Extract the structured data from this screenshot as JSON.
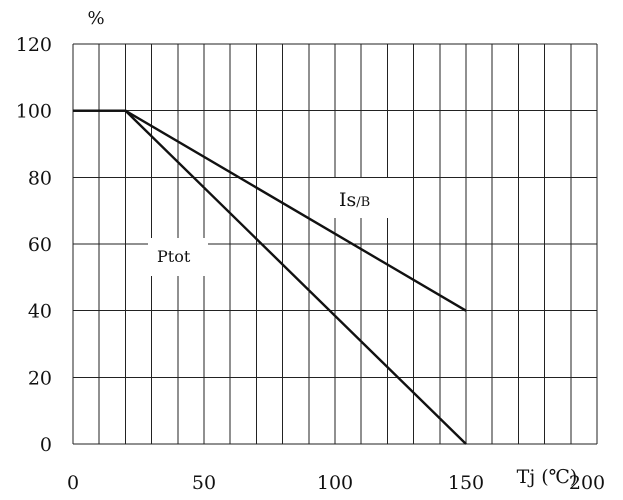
{
  "chart_data": {
    "type": "line",
    "xlabel": "Tj (℃)",
    "ylabel": "%",
    "xlim": [
      0,
      200
    ],
    "ylim": [
      0,
      120
    ],
    "x_ticks": [
      0,
      50,
      100,
      150,
      200
    ],
    "y_ticks": [
      0,
      20,
      40,
      60,
      80,
      100,
      120
    ],
    "grid": true,
    "series": [
      {
        "name": "Is/B",
        "x": [
          0,
          20,
          150
        ],
        "y": [
          100,
          100,
          40
        ]
      },
      {
        "name": "Ptot",
        "x": [
          0,
          20,
          150
        ],
        "y": [
          100,
          100,
          0
        ]
      }
    ],
    "annotations": [
      {
        "series": 0,
        "main": "Is",
        "sub": "/B"
      },
      {
        "series": 1,
        "main": "Ptot"
      }
    ]
  }
}
